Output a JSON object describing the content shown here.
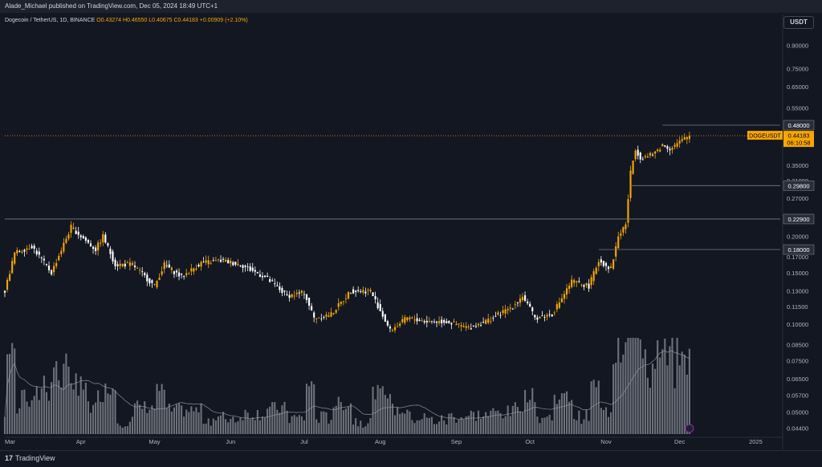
{
  "header": {
    "publisher": "Alade_Michael published on TradingView.com, Dec 05, 2024 18:49 UTC+1"
  },
  "legend": {
    "symbol": "Dogecoin / TetherUS, 1D, BINANCE",
    "open": "O0.43274",
    "high": "H0.46550",
    "low": "L0.40675",
    "close": "C0.44183",
    "change": "+0.00909 (+2.10%)"
  },
  "footer": {
    "logo_mark": "17",
    "logo_text": "TradingView"
  },
  "colors": {
    "background": "#131722",
    "up": "#f7a600",
    "down": "#ffffff",
    "axis_text": "#b2b5be",
    "level_line": "#787b86",
    "price_line": "#f7a600"
  },
  "chart_data": {
    "type": "candlestick",
    "unit": "USDT",
    "y_scale": "log",
    "ylim": [
      0.042,
      1.0
    ],
    "y_ticks": [
      "0.90000",
      "0.75000",
      "0.65000",
      "0.55000",
      "0.48000",
      "0.35000",
      "0.31000",
      "0.29800",
      "0.27000",
      "0.22900",
      "0.20000",
      "0.18000",
      "0.17000",
      "0.15000",
      "0.13000",
      "0.11500",
      "0.10000",
      "0.08500",
      "0.07500",
      "0.06500",
      "0.05700",
      "0.05000",
      "0.04400"
    ],
    "x_ticks": [
      "Mar",
      "Apr",
      "May",
      "Jun",
      "Jul",
      "Aug",
      "Sep",
      "Oct",
      "Nov",
      "Dec",
      "2025"
    ],
    "x_tick_dates": [
      "2024-03-01",
      "2024-04-01",
      "2024-05-01",
      "2024-06-01",
      "2024-07-01",
      "2024-08-01",
      "2024-09-01",
      "2024-10-01",
      "2024-11-01",
      "2024-12-01",
      "2025-01-01"
    ],
    "x_start": "2024-03-01",
    "x_end": "2025-01-11",
    "price_path": [
      {
        "date": "2024-03-01",
        "close": 0.13
      },
      {
        "date": "2024-03-05",
        "close": 0.175
      },
      {
        "date": "2024-03-12",
        "close": 0.185
      },
      {
        "date": "2024-03-20",
        "close": 0.15
      },
      {
        "date": "2024-03-28",
        "close": 0.215
      },
      {
        "date": "2024-04-01",
        "close": 0.2
      },
      {
        "date": "2024-04-07",
        "close": 0.18
      },
      {
        "date": "2024-04-10",
        "close": 0.2
      },
      {
        "date": "2024-04-15",
        "close": 0.16
      },
      {
        "date": "2024-04-22",
        "close": 0.16
      },
      {
        "date": "2024-05-01",
        "close": 0.135
      },
      {
        "date": "2024-05-05",
        "close": 0.16
      },
      {
        "date": "2024-05-12",
        "close": 0.145
      },
      {
        "date": "2024-05-20",
        "close": 0.162
      },
      {
        "date": "2024-05-28",
        "close": 0.165
      },
      {
        "date": "2024-06-05",
        "close": 0.16
      },
      {
        "date": "2024-06-15",
        "close": 0.145
      },
      {
        "date": "2024-06-24",
        "close": 0.125
      },
      {
        "date": "2024-07-01",
        "close": 0.128
      },
      {
        "date": "2024-07-05",
        "close": 0.105
      },
      {
        "date": "2024-07-12",
        "close": 0.108
      },
      {
        "date": "2024-07-20",
        "close": 0.13
      },
      {
        "date": "2024-07-28",
        "close": 0.13
      },
      {
        "date": "2024-08-05",
        "close": 0.095
      },
      {
        "date": "2024-08-12",
        "close": 0.105
      },
      {
        "date": "2024-08-20",
        "close": 0.102
      },
      {
        "date": "2024-08-28",
        "close": 0.102
      },
      {
        "date": "2024-09-06",
        "close": 0.097
      },
      {
        "date": "2024-09-15",
        "close": 0.104
      },
      {
        "date": "2024-09-24",
        "close": 0.115
      },
      {
        "date": "2024-09-28",
        "close": 0.125
      },
      {
        "date": "2024-10-03",
        "close": 0.105
      },
      {
        "date": "2024-10-10",
        "close": 0.108
      },
      {
        "date": "2024-10-18",
        "close": 0.14
      },
      {
        "date": "2024-10-25",
        "close": 0.135
      },
      {
        "date": "2024-10-29",
        "close": 0.165
      },
      {
        "date": "2024-11-03",
        "close": 0.155
      },
      {
        "date": "2024-11-06",
        "close": 0.2
      },
      {
        "date": "2024-11-09",
        "close": 0.22
      },
      {
        "date": "2024-11-11",
        "close": 0.33
      },
      {
        "date": "2024-11-13",
        "close": 0.4
      },
      {
        "date": "2024-11-15",
        "close": 0.37
      },
      {
        "date": "2024-11-20",
        "close": 0.38
      },
      {
        "date": "2024-11-24",
        "close": 0.41
      },
      {
        "date": "2024-11-27",
        "close": 0.4
      },
      {
        "date": "2024-12-01",
        "close": 0.42
      },
      {
        "date": "2024-12-05",
        "close": 0.44183
      }
    ],
    "levels": [
      {
        "label": "0.48000",
        "value": 0.48,
        "start": "2024-11-24"
      },
      {
        "label": "0.29800",
        "value": 0.298,
        "start": "2024-11-11"
      },
      {
        "label": "0.22900",
        "value": 0.229,
        "start": "2024-03-01"
      },
      {
        "label": "0.18000",
        "value": 0.18,
        "start": "2024-10-29"
      }
    ],
    "current": {
      "label": "DOGEUSDT",
      "price": "0.44183",
      "value": 0.44183,
      "countdown": "06:10:58"
    },
    "volume": {
      "shown": true,
      "moving_average": true
    }
  }
}
